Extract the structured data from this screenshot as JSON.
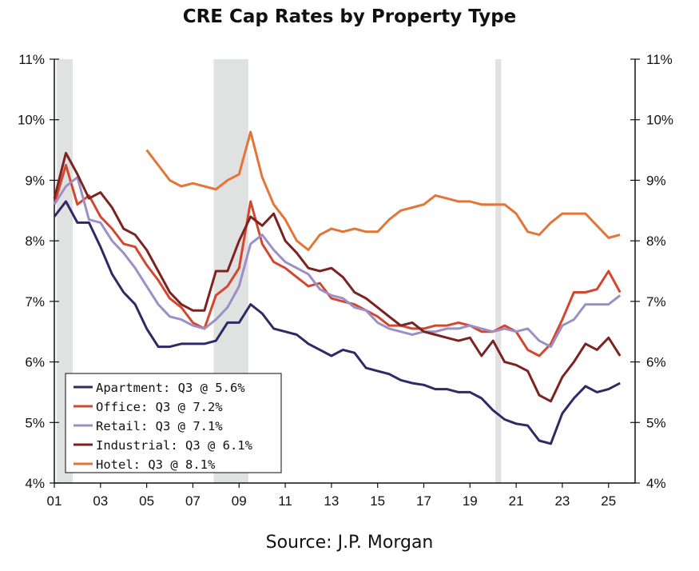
{
  "chart_data": {
    "type": "line",
    "title": "CRE Cap Rates by Property Type",
    "source": "Source: J.P. Morgan",
    "xlim": [
      2001,
      2026.15
    ],
    "ylim": [
      4,
      11
    ],
    "y_ticks": [
      4,
      5,
      6,
      7,
      8,
      9,
      10,
      11
    ],
    "y_tick_labels": [
      "4%",
      "5%",
      "6%",
      "7%",
      "8%",
      "9%",
      "10%",
      "11%"
    ],
    "x_ticks": [
      2001,
      2003,
      2005,
      2007,
      2009,
      2011,
      2013,
      2015,
      2017,
      2019,
      2021,
      2023,
      2025
    ],
    "x_tick_labels": [
      "01",
      "03",
      "05",
      "07",
      "09",
      "11",
      "13",
      "15",
      "17",
      "19",
      "21",
      "23",
      "25"
    ],
    "grid": false,
    "legend_position": "bottom-left",
    "recession_shading": [
      [
        2001.1,
        2001.8
      ],
      [
        2007.9,
        2009.4
      ],
      [
        2020.1,
        2020.35
      ]
    ],
    "recession_color": "#e0e1e1",
    "x": [
      2001,
      2001.5,
      2002,
      2002.5,
      2003,
      2003.5,
      2004,
      2004.5,
      2005,
      2005.5,
      2006,
      2006.5,
      2007,
      2007.5,
      2008,
      2008.5,
      2009,
      2009.5,
      2010,
      2010.5,
      2011,
      2011.5,
      2012,
      2012.5,
      2013,
      2013.5,
      2014,
      2014.5,
      2015,
      2015.5,
      2016,
      2016.5,
      2017,
      2017.5,
      2018,
      2018.5,
      2019,
      2019.5,
      2020,
      2020.5,
      2021,
      2021.5,
      2022,
      2022.5,
      2023,
      2023.5,
      2024,
      2024.5,
      2025,
      2025.5
    ],
    "series": [
      {
        "name": "Apartment: Q3 @ 5.6%",
        "color": "#2e2a66",
        "values": [
          8.4,
          8.65,
          8.3,
          8.3,
          7.9,
          7.45,
          7.15,
          6.95,
          6.55,
          6.25,
          6.25,
          6.3,
          6.3,
          6.3,
          6.35,
          6.65,
          6.65,
          6.95,
          6.8,
          6.55,
          6.5,
          6.45,
          6.3,
          6.2,
          6.1,
          6.2,
          6.15,
          5.9,
          5.85,
          5.8,
          5.7,
          5.65,
          5.62,
          5.55,
          5.55,
          5.5,
          5.5,
          5.4,
          5.2,
          5.05,
          4.98,
          4.95,
          4.7,
          4.65,
          5.15,
          5.4,
          5.6,
          5.5,
          5.55,
          5.65
        ]
      },
      {
        "name": "Office: Q3 @ 7.2%",
        "color": "#d2472f",
        "values": [
          8.6,
          9.25,
          8.6,
          8.75,
          8.4,
          8.2,
          7.95,
          7.9,
          7.6,
          7.35,
          7.05,
          6.9,
          6.65,
          6.55,
          7.1,
          7.25,
          7.55,
          8.65,
          7.95,
          7.65,
          7.55,
          7.4,
          7.25,
          7.3,
          7.05,
          7.0,
          6.95,
          6.85,
          6.75,
          6.6,
          6.6,
          6.55,
          6.55,
          6.6,
          6.6,
          6.65,
          6.6,
          6.5,
          6.5,
          6.6,
          6.5,
          6.2,
          6.1,
          6.3,
          6.7,
          7.15,
          7.15,
          7.2,
          7.5,
          7.15
        ]
      },
      {
        "name": "Retail: Q3 @ 7.1%",
        "color": "#9b8fc7",
        "values": [
          8.6,
          8.9,
          9.05,
          8.35,
          8.3,
          8.0,
          7.8,
          7.55,
          7.25,
          6.95,
          6.75,
          6.7,
          6.6,
          6.55,
          6.7,
          6.9,
          7.25,
          7.95,
          8.1,
          7.85,
          7.65,
          7.55,
          7.45,
          7.2,
          7.1,
          7.05,
          6.9,
          6.85,
          6.65,
          6.55,
          6.5,
          6.45,
          6.5,
          6.5,
          6.55,
          6.55,
          6.6,
          6.55,
          6.5,
          6.55,
          6.5,
          6.55,
          6.35,
          6.25,
          6.6,
          6.7,
          6.95,
          6.95,
          6.95,
          7.1
        ]
      },
      {
        "name": "Industrial: Q3 @ 6.1%",
        "color": "#7b2320",
        "values": [
          8.7,
          9.45,
          9.1,
          8.7,
          8.8,
          8.55,
          8.2,
          8.1,
          7.85,
          7.5,
          7.15,
          6.95,
          6.85,
          6.85,
          7.5,
          7.5,
          8.0,
          8.4,
          8.25,
          8.45,
          8.0,
          7.8,
          7.55,
          7.5,
          7.55,
          7.4,
          7.15,
          7.05,
          6.9,
          6.75,
          6.6,
          6.65,
          6.5,
          6.45,
          6.4,
          6.35,
          6.4,
          6.1,
          6.35,
          6.0,
          5.95,
          5.85,
          5.45,
          5.35,
          5.75,
          6.0,
          6.3,
          6.2,
          6.4,
          6.1
        ]
      },
      {
        "name": "Hotel: Q3 @ 8.1%",
        "color": "#e37536",
        "values": [
          null,
          null,
          null,
          null,
          null,
          null,
          null,
          null,
          9.5,
          9.25,
          9.0,
          8.9,
          8.95,
          8.9,
          8.85,
          9.0,
          9.1,
          9.8,
          9.05,
          8.6,
          8.35,
          8.0,
          7.85,
          8.1,
          8.2,
          8.15,
          8.2,
          8.15,
          8.15,
          8.35,
          8.5,
          8.55,
          8.6,
          8.75,
          8.7,
          8.65,
          8.65,
          8.6,
          8.6,
          8.6,
          8.45,
          8.15,
          8.1,
          8.3,
          8.45,
          8.45,
          8.45,
          8.25,
          8.05,
          8.1
        ]
      }
    ]
  }
}
